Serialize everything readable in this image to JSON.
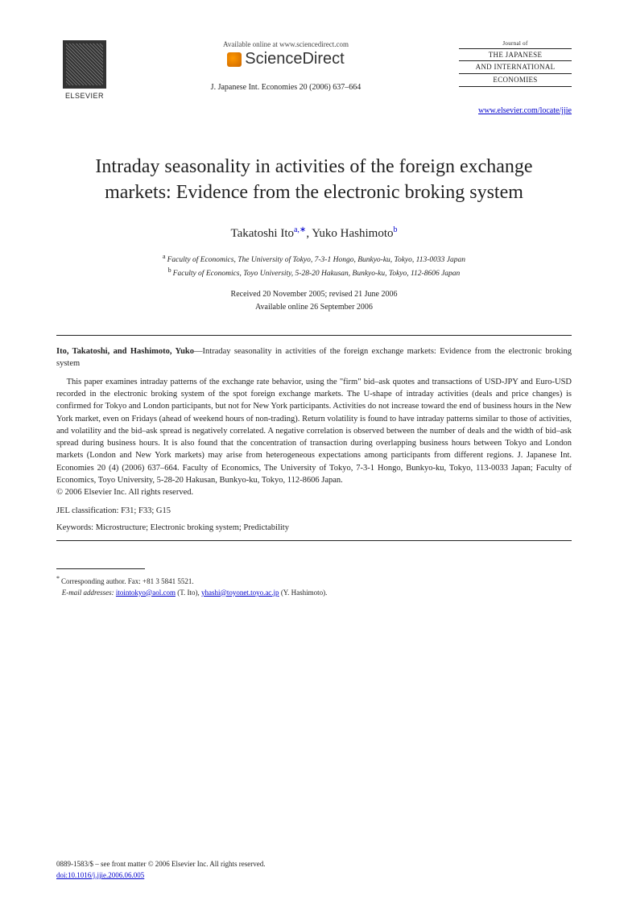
{
  "header": {
    "elsevier_label": "ELSEVIER",
    "available_text": "Available online at www.sciencedirect.com",
    "sd_label": "ScienceDirect",
    "journal_ref": "J. Japanese Int. Economies 20 (2006) 637–664",
    "journal_box_line1": "Journal of",
    "journal_box_line2": "THE JAPANESE",
    "journal_box_line3": "AND INTERNATIONAL",
    "journal_box_line4": "ECONOMIES",
    "journal_link": "www.elsevier.com/locate/jjie"
  },
  "title": "Intraday seasonality in activities of the foreign exchange markets: Evidence from the electronic broking system",
  "authors": {
    "a1_name": "Takatoshi Ito",
    "a1_marks": "a,∗",
    "a2_name": "Yuko Hashimoto",
    "a2_marks": "b"
  },
  "affiliations": {
    "a": "Faculty of Economics, The University of Tokyo, 7-3-1 Hongo, Bunkyo-ku, Tokyo, 113-0033 Japan",
    "b": "Faculty of Economics, Toyo University, 5-28-20 Hakusan, Bunkyo-ku, Tokyo, 112-8606 Japan"
  },
  "dates": {
    "received": "Received 20 November 2005; revised 21 June 2006",
    "online": "Available online 26 September 2006"
  },
  "abstract": {
    "lead_bold": "Ito, Takatoshi, and Hashimoto, Yuko",
    "lead_rest": "—Intraday seasonality in activities of the foreign exchange markets: Evidence from the electronic broking system",
    "body": "This paper examines intraday patterns of the exchange rate behavior, using the \"firm\" bid–ask quotes and transactions of USD-JPY and Euro-USD recorded in the electronic broking system of the spot foreign exchange markets. The U-shape of intraday activities (deals and price changes) is confirmed for Tokyo and London participants, but not for New York participants. Activities do not increase toward the end of business hours in the New York market, even on Fridays (ahead of weekend hours of non-trading). Return volatility is found to have intraday patterns similar to those of activities, and volatility and the bid–ask spread is negatively correlated. A negative correlation is observed between the number of deals and the width of bid–ask spread during business hours. It is also found that the concentration of transaction during overlapping business hours between Tokyo and London markets (London and New York markets) may arise from heterogeneous expectations among participants from different regions. J. Japanese Int. Economies 20 (4) (2006) 637–664. Faculty of Economics, The University of Tokyo, 7-3-1 Hongo, Bunkyo-ku, Tokyo, 113-0033 Japan; Faculty of Economics, Toyo University, 5-28-20 Hakusan, Bunkyo-ku, Tokyo, 112-8606 Japan.",
    "copyright": "© 2006 Elsevier Inc. All rights reserved."
  },
  "jel": {
    "label": "JEL classification:",
    "value": "F31; F33; G15"
  },
  "keywords": {
    "label": "Keywords:",
    "value": "Microstructure; Electronic broking system; Predictability"
  },
  "footnote": {
    "corr_label": "Corresponding author. Fax: +81 3 5841 5521.",
    "email_label": "E-mail addresses:",
    "email1": "itointokyo@aol.com",
    "email1_person": "(T. Ito),",
    "email2": "yhashi@toyonet.toyo.ac.jp",
    "email2_person": "(Y. Hashimoto)."
  },
  "footer": {
    "issn_line": "0889-1583/$ – see front matter  © 2006 Elsevier Inc. All rights reserved.",
    "doi_label": "doi:",
    "doi": "10.1016/j.jjie.2006.06.005"
  },
  "colors": {
    "text": "#222222",
    "link": "#0000cc",
    "background": "#ffffff"
  }
}
